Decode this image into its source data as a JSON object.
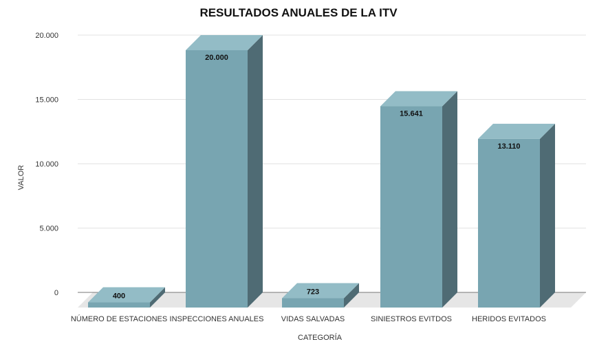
{
  "chart_data": {
    "type": "bar",
    "title": "RESULTADOS ANUALES DE LA ITV",
    "xlabel": "CATEGORÍA",
    "ylabel": "VALOR",
    "categories": [
      "NÚMERO DE ESTACIONES",
      "INSPECCIONES ANUALES",
      "VIDAS SALVADAS",
      "SINIESTROS EVITDOS",
      "HERIDOS EVITADOS"
    ],
    "values": [
      400,
      20000,
      723,
      15641,
      13110
    ],
    "data_labels": [
      "400",
      "20.000",
      "723",
      "15.641",
      "13.110"
    ],
    "ylim": [
      0,
      20000
    ],
    "yticks": [
      0,
      5000,
      10000,
      15000,
      20000
    ],
    "ytick_labels": [
      "0",
      "5.000",
      "10.000",
      "15.000",
      "20.000"
    ],
    "grid": true,
    "legend": "none",
    "style": "3d-column",
    "colors": {
      "bar_front": "#78a5b1",
      "bar_top": "#93bcc6",
      "bar_side": "#4f6b74",
      "floor": "#e6e6e6",
      "grid": "#e2e2e2"
    }
  }
}
